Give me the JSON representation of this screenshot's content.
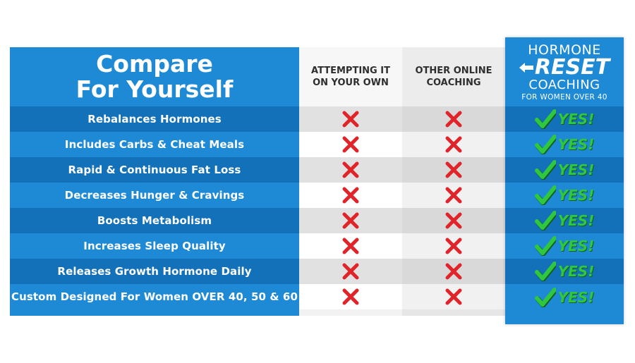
{
  "title_lines": [
    "Compare",
    "For Yourself"
  ],
  "columns": {
    "col1": [
      "ATTEMPTING IT",
      "ON YOUR OWN"
    ],
    "col2": [
      "OTHER ONLINE",
      "COACHING"
    ]
  },
  "hr": {
    "line1": "HORMONE",
    "line2": "RESET",
    "line3": "COACHING",
    "line4": "FOR WOMEN OVER 40",
    "yes_label": "YES!"
  },
  "rows": [
    {
      "label": "Rebalances Hormones"
    },
    {
      "label": "Includes Carbs & Cheat Meals"
    },
    {
      "label": "Rapid & Continuous Fat Loss"
    },
    {
      "label": "Decreases Hunger & Cravings"
    },
    {
      "label": "Boosts Metabolism"
    },
    {
      "label": "Increases Sleep Quality"
    },
    {
      "label": "Releases Growth Hormone Daily"
    },
    {
      "label": "Custom Designed For Women OVER 40, 50 & 60"
    }
  ],
  "colors": {
    "blue": "#1e8ad6",
    "blue_dark": "#1271b9",
    "cross": "#e0242a",
    "check": "#2fc73f"
  },
  "icons": {
    "cross": "red-x-icon",
    "check": "green-check-icon"
  }
}
